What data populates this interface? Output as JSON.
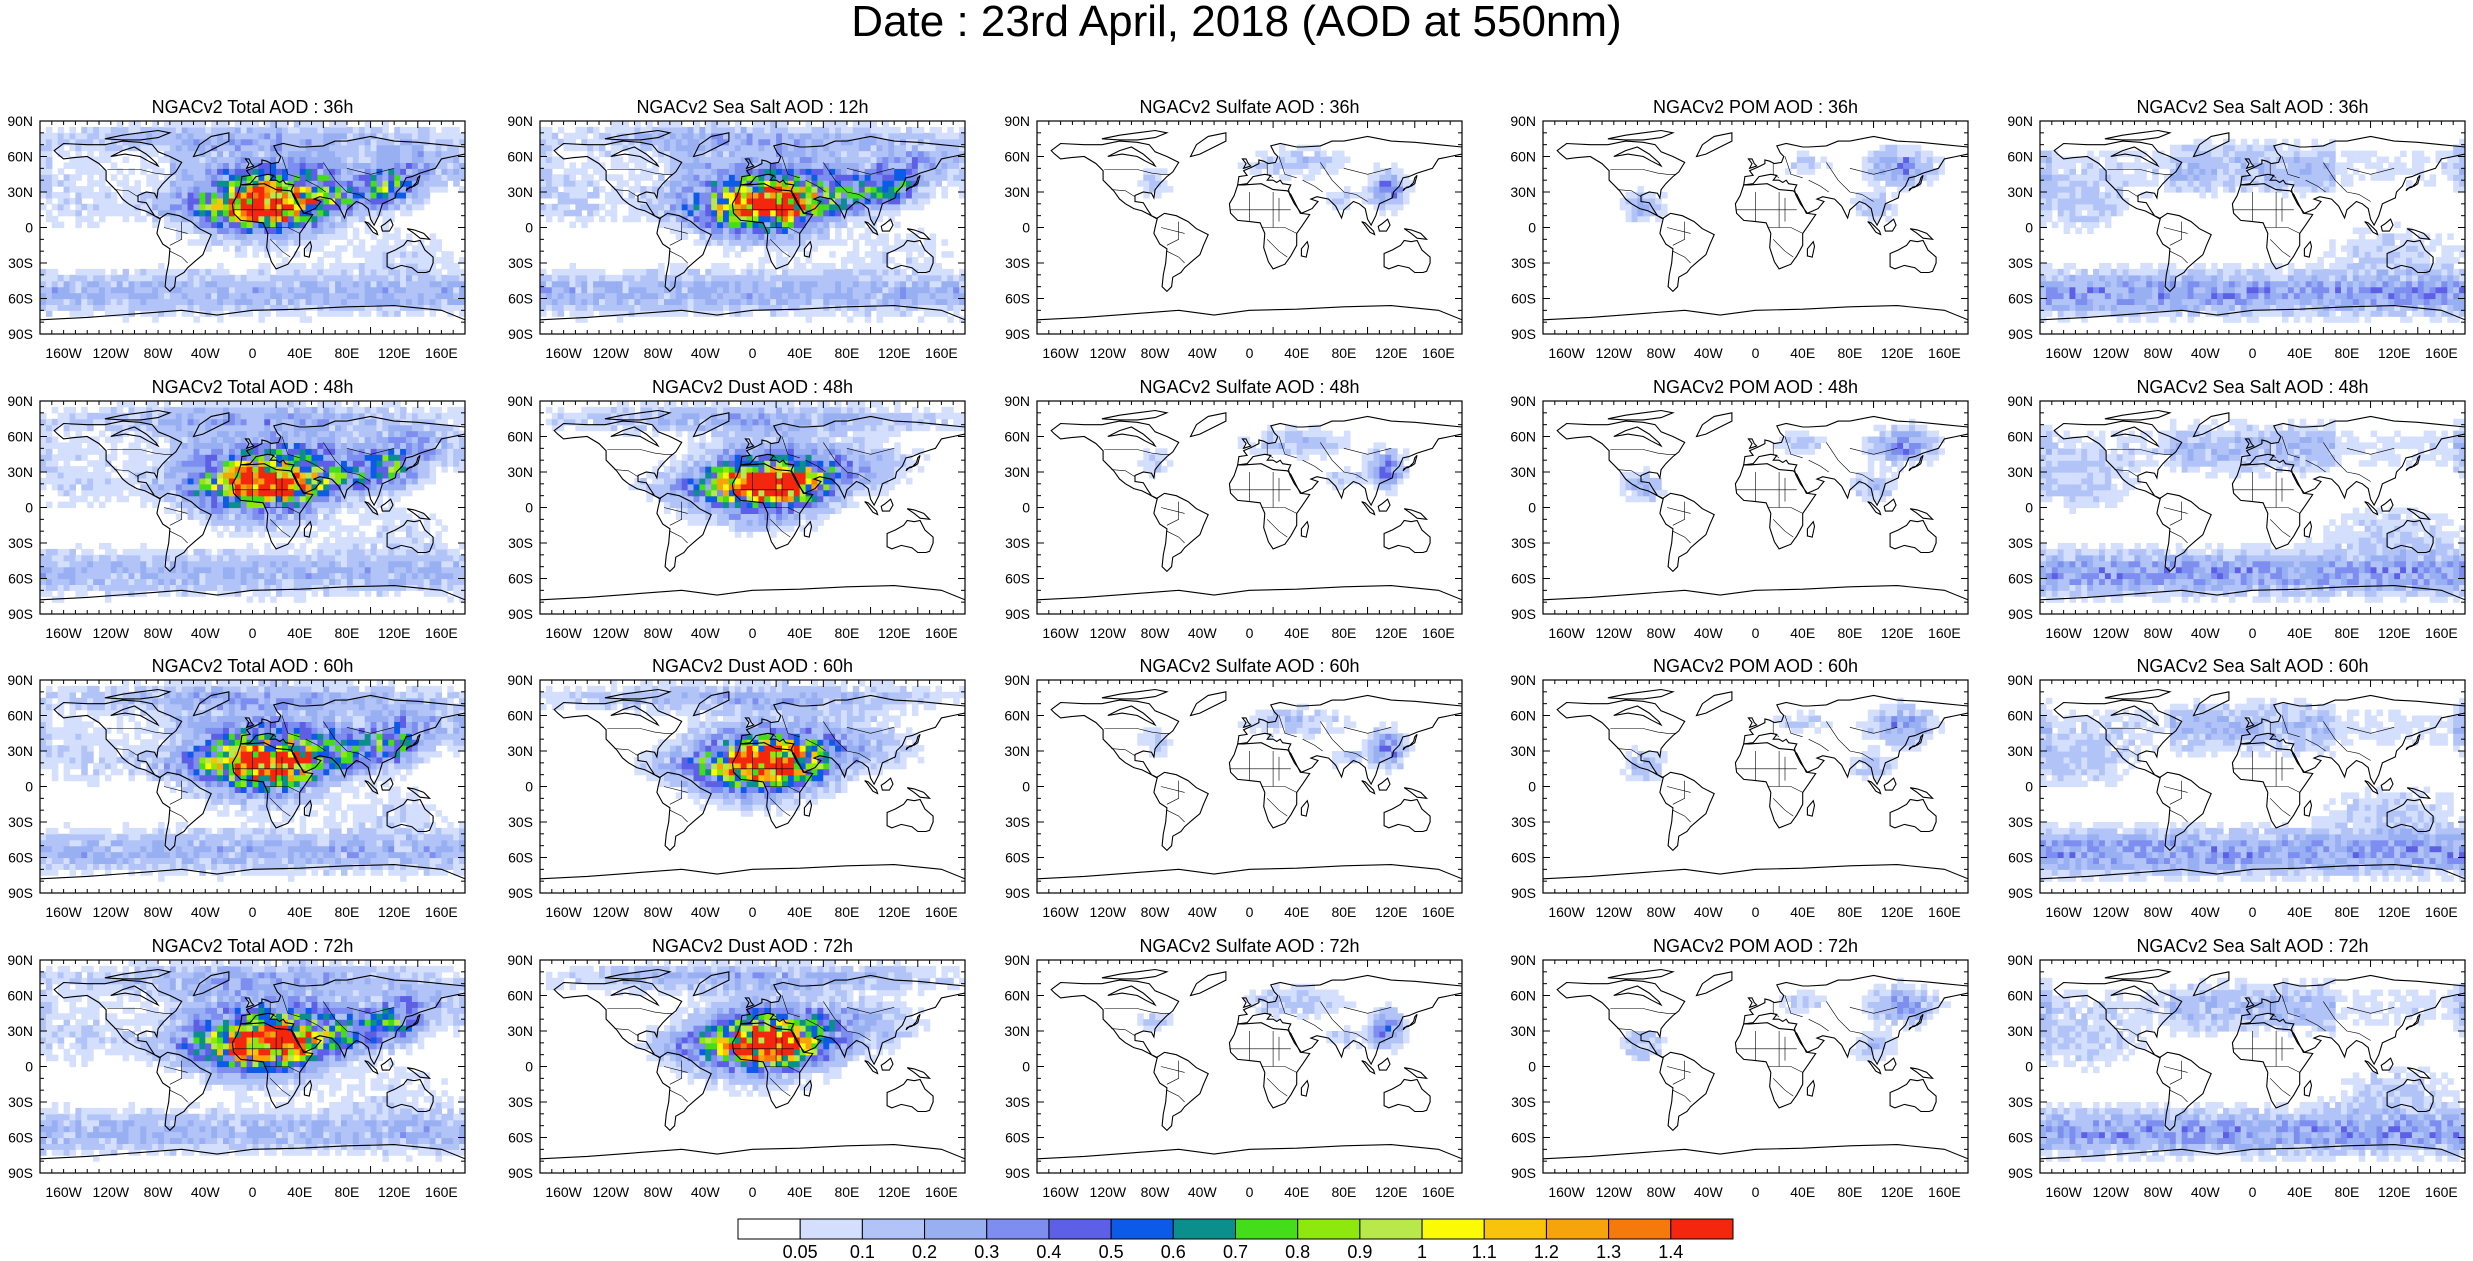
{
  "title": "Date : 23rd April, 2018 (AOD at 550nm)",
  "lat_labels": [
    "90N",
    "60N",
    "30N",
    "0",
    "30S",
    "60S",
    "90S"
  ],
  "lon_labels": [
    "160W",
    "120W",
    "80W",
    "40W",
    "0",
    "40E",
    "80E",
    "120E",
    "160E"
  ],
  "rows": [
    [
      "NGACv2 Total AOD : 36h",
      "NGACv2 Sea Salt  AOD : 12h",
      "NGACv2 Sulfate AOD : 36h",
      "NGACv2 POM AOD : 36h",
      "NGACv2 Sea Salt  AOD : 36h"
    ],
    [
      "NGACv2 Total AOD : 48h",
      "NGACv2 Dust AOD : 48h",
      "NGACv2 Sulfate AOD : 48h",
      "NGACv2 POM AOD : 48h",
      "NGACv2 Sea Salt  AOD : 48h"
    ],
    [
      "NGACv2 Total AOD : 60h",
      "NGACv2 Dust AOD : 60h",
      "NGACv2 Sulfate AOD : 60h",
      "NGACv2 POM AOD : 60h",
      "NGACv2 Sea Salt  AOD : 60h"
    ],
    [
      "NGACv2 Total AOD : 72h",
      "NGACv2 Dust AOD : 72h",
      "NGACv2 Sulfate AOD : 72h",
      "NGACv2 POM AOD : 72h",
      "NGACv2 Sea Salt  AOD : 72h"
    ]
  ],
  "colorbar": {
    "labels": [
      "0.05",
      "0.1",
      "0.2",
      "0.3",
      "0.4",
      "0.5",
      "0.6",
      "0.7",
      "0.8",
      "0.9",
      "1",
      "1.1",
      "1.2",
      "1.3",
      "1.4"
    ],
    "colors": [
      "#ffffff",
      "#d3dffc",
      "#b2c4f7",
      "#98aff2",
      "#7d8ef0",
      "#5d5fe6",
      "#0c5be8",
      "#0a8f8c",
      "#44dd1a",
      "#8ee80e",
      "#b8e84a",
      "#fbfb05",
      "#f8c30a",
      "#f7a30b",
      "#f67a0b",
      "#f5260e"
    ]
  }
}
